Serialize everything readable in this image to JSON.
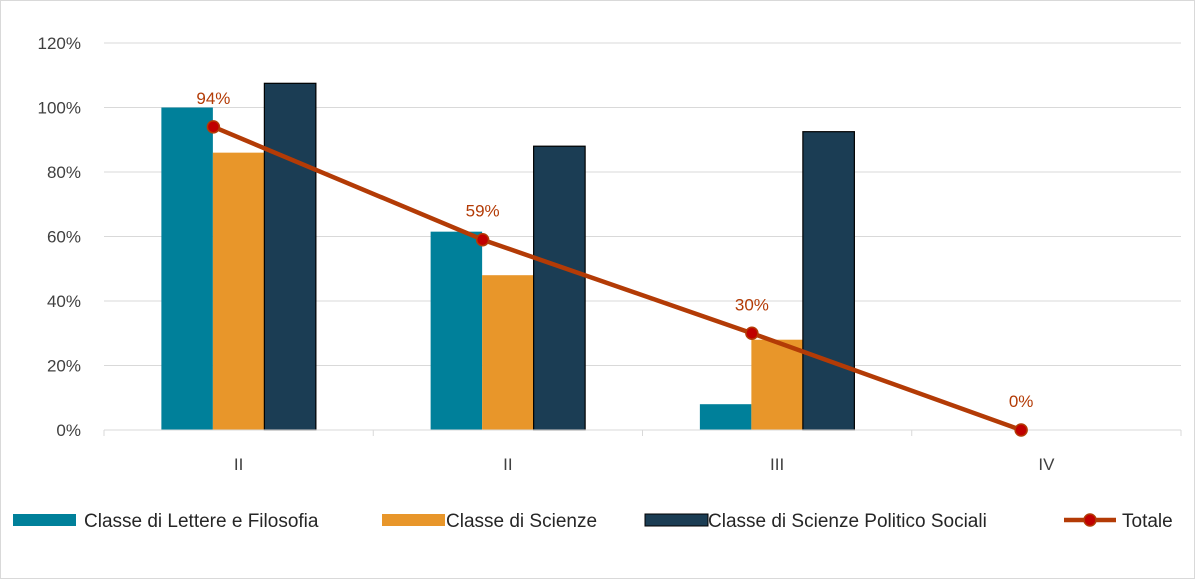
{
  "chart_data": {
    "type": "bar",
    "categories": [
      "II",
      "II",
      "III",
      "IV"
    ],
    "ylim": [
      0,
      1.2
    ],
    "yticks": [
      0,
      0.2,
      0.4,
      0.6,
      0.8,
      1.0,
      1.2
    ],
    "ytick_labels": [
      "0%",
      "20%",
      "40%",
      "60%",
      "80%",
      "100%",
      "120%"
    ],
    "grid": true,
    "legend_position": "bottom",
    "series": [
      {
        "name": "Classe di Lettere e Filosofia",
        "kind": "bar",
        "color": "#00809a",
        "values": [
          1.0,
          0.615,
          0.08,
          0
        ]
      },
      {
        "name": "Classe di Scienze",
        "kind": "bar",
        "color": "#e8962a",
        "values": [
          0.86,
          0.48,
          0.28,
          0
        ]
      },
      {
        "name": "Classe di Scienze Politico Sociali",
        "kind": "bar",
        "color": "#1b3d54",
        "values": [
          1.075,
          0.88,
          0.925,
          0
        ]
      },
      {
        "name": "Totale",
        "kind": "line",
        "color": "#b33b06",
        "marker_color": "#c00000",
        "values": [
          0.94,
          0.59,
          0.3,
          0.0
        ],
        "data_labels": [
          "94%",
          "59%",
          "30%",
          "0%"
        ]
      }
    ]
  }
}
